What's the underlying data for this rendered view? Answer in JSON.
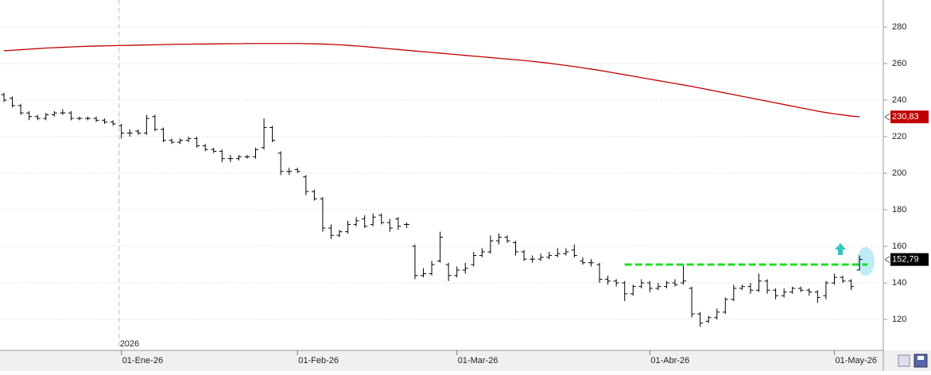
{
  "chart_data": {
    "type": "ohlc",
    "year_label": "2026",
    "ylim": [
      103.5,
      294.8
    ],
    "yticks": [
      120,
      140,
      160,
      180,
      200,
      220,
      240,
      260,
      280
    ],
    "grid": true,
    "categories": [
      null,
      null,
      null,
      null,
      null,
      null,
      null,
      null,
      null,
      null,
      null,
      null,
      null,
      null,
      "01-Ene-26",
      null,
      null,
      null,
      null,
      null,
      null,
      null,
      null,
      null,
      null,
      null,
      null,
      null,
      null,
      null,
      null,
      null,
      null,
      null,
      null,
      "01-Feb-26",
      null,
      null,
      null,
      null,
      null,
      null,
      null,
      null,
      null,
      null,
      null,
      null,
      null,
      null,
      null,
      null,
      null,
      null,
      "01-Mar-26",
      null,
      null,
      null,
      null,
      null,
      null,
      null,
      null,
      null,
      null,
      null,
      null,
      null,
      null,
      null,
      null,
      null,
      null,
      null,
      null,
      null,
      null,
      "01-Abr-26",
      null,
      null,
      null,
      null,
      null,
      null,
      null,
      null,
      null,
      null,
      null,
      null,
      null,
      null,
      null,
      null,
      null,
      null,
      null,
      null,
      null,
      "01-May-26",
      null,
      null,
      null
    ],
    "ohlc": {
      "color": "#000000",
      "open": [
        243,
        241,
        237,
        233,
        231,
        230,
        232,
        233,
        233,
        230,
        230,
        230,
        229,
        228,
        226,
        222,
        223,
        222,
        231,
        224,
        218,
        217,
        218,
        219,
        215,
        213,
        212,
        208,
        208,
        209,
        209,
        214,
        225,
        211,
        201,
        202,
        198,
        190,
        186,
        170,
        166,
        168,
        172,
        175,
        172,
        177,
        173,
        175,
        172,
        160,
        144,
        145,
        152,
        150,
        144,
        147,
        150,
        155,
        157,
        163,
        165,
        162,
        157,
        153,
        153,
        154,
        155,
        156,
        158,
        152,
        151,
        150,
        142,
        141,
        140,
        134,
        138,
        140,
        137,
        138,
        140,
        140,
        137,
        123,
        119,
        121,
        124,
        131,
        137,
        138,
        136,
        141,
        136,
        133,
        135,
        137,
        136,
        135,
        133,
        140,
        143,
        141,
        147
      ],
      "high": [
        244,
        242,
        238,
        234,
        232,
        233,
        234,
        235,
        234,
        231,
        231,
        231,
        230,
        229,
        227,
        224,
        224,
        232,
        232,
        225,
        219,
        219,
        220,
        220,
        216,
        214,
        213,
        210,
        210,
        210,
        214,
        230,
        226,
        212,
        203,
        203,
        199,
        191,
        187,
        172,
        169,
        174,
        176,
        177,
        178,
        178,
        175,
        176,
        173,
        161,
        148,
        152,
        168,
        151,
        149,
        151,
        157,
        159,
        166,
        167,
        166,
        163,
        158,
        155,
        156,
        157,
        159,
        159,
        161,
        154,
        153,
        151,
        144,
        142,
        141,
        139,
        142,
        141,
        140,
        141,
        142,
        150,
        138,
        124,
        122,
        126,
        132,
        139,
        139,
        140,
        145,
        142,
        137,
        137,
        138,
        138,
        137,
        136,
        141,
        145,
        144,
        142,
        155
      ],
      "low": [
        239,
        236,
        232,
        229,
        229,
        229,
        231,
        232,
        229,
        229,
        229,
        228,
        227,
        226,
        219,
        220,
        221,
        221,
        223,
        217,
        216,
        216,
        217,
        214,
        212,
        211,
        206,
        206,
        207,
        208,
        208,
        213,
        217,
        199,
        199,
        200,
        188,
        185,
        168,
        164,
        165,
        167,
        171,
        170,
        171,
        172,
        168,
        169,
        170,
        142,
        143,
        144,
        151,
        141,
        143,
        145,
        149,
        154,
        156,
        161,
        162,
        155,
        152,
        151,
        152,
        153,
        154,
        155,
        154,
        150,
        149,
        140,
        139,
        138,
        130,
        133,
        137,
        135,
        136,
        137,
        138,
        139,
        121,
        116,
        118,
        120,
        123,
        130,
        136,
        134,
        135,
        134,
        131,
        132,
        134,
        135,
        133,
        129,
        131,
        139,
        140,
        136,
        147
      ],
      "close": [
        240,
        237,
        233,
        231,
        230,
        232,
        233,
        233,
        230,
        230,
        230,
        229,
        228,
        227,
        222,
        222,
        222,
        230,
        224,
        218,
        217,
        218,
        219,
        215,
        213,
        212,
        208,
        208,
        209,
        209,
        213,
        225,
        218,
        201,
        201,
        201,
        190,
        186,
        170,
        166,
        168,
        172,
        174,
        171,
        176,
        173,
        170,
        171,
        172,
        144,
        145,
        150,
        165,
        144,
        147,
        148,
        155,
        157,
        163,
        165,
        163,
        157,
        153,
        153,
        154,
        155,
        156,
        157,
        155,
        151,
        151,
        142,
        141,
        140,
        134,
        138,
        140,
        137,
        138,
        140,
        139,
        141,
        123,
        118,
        121,
        124,
        131,
        137,
        138,
        136,
        141,
        136,
        133,
        135,
        137,
        136,
        135,
        132,
        140,
        143,
        141,
        138,
        152.79
      ],
      "last_close_label": "152,79"
    },
    "moving_average": {
      "color": "#c00000",
      "values": [
        267,
        267.3,
        267.6,
        267.9,
        268.2,
        268.5,
        268.7,
        268.9,
        269.1,
        269.3,
        269.5,
        269.6,
        269.7,
        269.8,
        269.9,
        270,
        270.1,
        270.2,
        270.3,
        270.4,
        270.5,
        270.6,
        270.6,
        270.7,
        270.7,
        270.8,
        270.8,
        270.9,
        270.9,
        271,
        271,
        271,
        271,
        271,
        271,
        271,
        270.9,
        270.8,
        270.7,
        270.5,
        270.3,
        270,
        269.7,
        269.3,
        268.9,
        268.5,
        268.1,
        267.7,
        267.3,
        266.9,
        266.5,
        266.1,
        265.7,
        265.3,
        264.9,
        264.5,
        264.1,
        263.7,
        263.3,
        262.9,
        262.5,
        262.1,
        261.7,
        261.2,
        260.7,
        260.2,
        259.6,
        259,
        258.4,
        257.7,
        257,
        256.3,
        255.5,
        254.7,
        253.9,
        253.1,
        252.3,
        251.5,
        250.7,
        249.9,
        249.1,
        248.3,
        247.5,
        246.6,
        245.7,
        244.8,
        243.9,
        243,
        242.1,
        241.2,
        240.3,
        239.4,
        238.5,
        237.6,
        236.7,
        235.8,
        234.9,
        234,
        233.2,
        232.5,
        231.9,
        231.3,
        230.83
      ],
      "last_label": "230,83"
    },
    "resistance": {
      "value": 150,
      "color": "#22dd22"
    }
  }
}
